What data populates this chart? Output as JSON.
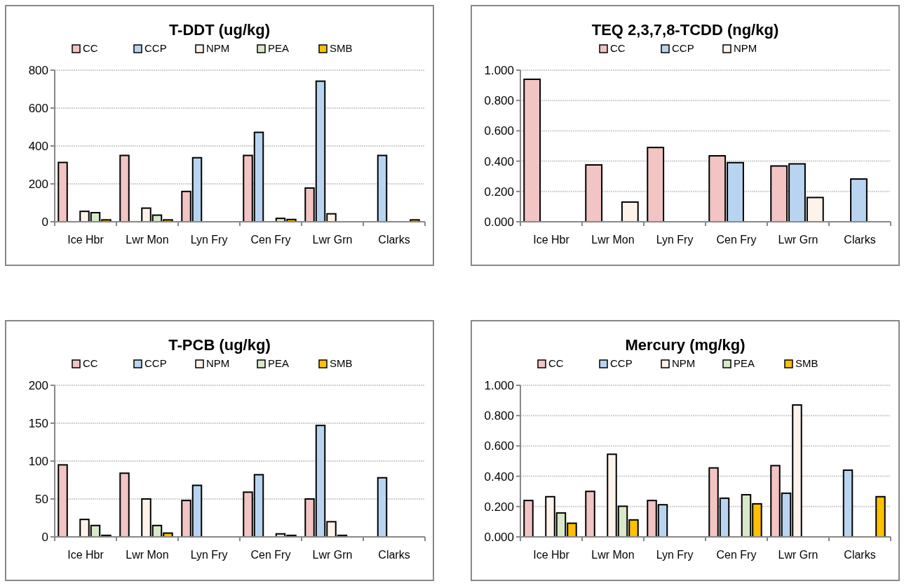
{
  "chart_data": [
    {
      "type": "bar",
      "title": "T-DDT  (ug/kg)",
      "categories": [
        "Ice Hbr",
        "Lwr Mon",
        "Lyn Fry",
        "Cen Fry",
        "Lwr Grn",
        "Clarks"
      ],
      "legend": "top",
      "grid": "y",
      "ylim": [
        0,
        800
      ],
      "yticks": [
        0,
        200,
        400,
        600,
        800
      ],
      "series": [
        {
          "name": "CC",
          "color": "#f2c4c4",
          "values": [
            313,
            350,
            160,
            350,
            178,
            null
          ]
        },
        {
          "name": "CCP",
          "color": "#b8d4f0",
          "values": [
            null,
            null,
            338,
            472,
            742,
            350
          ]
        },
        {
          "name": "NPM",
          "color": "#fdf3ea",
          "values": [
            55,
            72,
            null,
            null,
            42,
            null
          ]
        },
        {
          "name": "PEA",
          "color": "#d8e8c8",
          "values": [
            48,
            35,
            null,
            18,
            null,
            null
          ]
        },
        {
          "name": "SMB",
          "color": "#ffc000",
          "values": [
            10,
            10,
            null,
            12,
            null,
            10
          ]
        }
      ]
    },
    {
      "type": "bar",
      "title": "TEQ  2,3,7,8-TCDD  (ng/kg)",
      "categories": [
        "Ice Hbr",
        "Lwr Mon",
        "Lyn Fry",
        "Cen Fry",
        "Lwr Grn",
        "Clarks"
      ],
      "legend": "top",
      "grid": "y",
      "ylim": [
        0,
        1
      ],
      "yticks": [
        {
          "value": 0,
          "label": "0.000"
        },
        {
          "value": 0.2,
          "label": "0.200"
        },
        {
          "value": 0.4,
          "label": "0.400"
        },
        {
          "value": 0.6,
          "label": "0.600"
        },
        {
          "value": 0.8,
          "label": "0.800"
        },
        {
          "value": 1,
          "label": "1.000"
        }
      ],
      "series": [
        {
          "name": "CC",
          "color": "#f2c4c4",
          "values": [
            0.94,
            0.375,
            0.49,
            0.435,
            0.368,
            null
          ]
        },
        {
          "name": "CCP",
          "color": "#b8d4f0",
          "values": [
            null,
            null,
            null,
            0.39,
            0.382,
            0.282
          ]
        },
        {
          "name": "NPM",
          "color": "#fdf3ea",
          "values": [
            null,
            0.13,
            null,
            null,
            0.16,
            null
          ]
        }
      ]
    },
    {
      "type": "bar",
      "title": "T-PCB  (ug/kg)",
      "categories": [
        "Ice Hbr",
        "Lwr Mon",
        "Lyn Fry",
        "Cen Fry",
        "Lwr Grn",
        "Clarks"
      ],
      "legend": "top",
      "grid": "y",
      "ylim": [
        0,
        200
      ],
      "yticks": [
        0,
        50,
        100,
        150,
        200
      ],
      "series": [
        {
          "name": "CC",
          "color": "#f2c4c4",
          "values": [
            95,
            84,
            48,
            59,
            50,
            null
          ]
        },
        {
          "name": "CCP",
          "color": "#b8d4f0",
          "values": [
            null,
            null,
            68,
            82,
            147,
            78
          ]
        },
        {
          "name": "NPM",
          "color": "#fdf3ea",
          "values": [
            23,
            50,
            null,
            null,
            20,
            null
          ]
        },
        {
          "name": "PEA",
          "color": "#d8e8c8",
          "values": [
            15,
            15,
            null,
            4,
            2,
            null
          ]
        },
        {
          "name": "SMB",
          "color": "#ffc000",
          "values": [
            2,
            5,
            null,
            2,
            null,
            null
          ]
        }
      ]
    },
    {
      "type": "bar",
      "title": "Mercury (mg/kg)",
      "categories": [
        "Ice Hbr",
        "Lwr Mon",
        "Lyn Fry",
        "Cen Fry",
        "Lwr Grn",
        "Clarks"
      ],
      "legend": "top",
      "grid": "y",
      "ylim": [
        0,
        1
      ],
      "yticks": [
        {
          "value": 0,
          "label": "0.000"
        },
        {
          "value": 0.2,
          "label": "0.200"
        },
        {
          "value": 0.4,
          "label": "0.400"
        },
        {
          "value": 0.6,
          "label": "0.600"
        },
        {
          "value": 0.8,
          "label": "0.800"
        },
        {
          "value": 1,
          "label": "1.000"
        }
      ],
      "series": [
        {
          "name": "CC",
          "color": "#f2c4c4",
          "values": [
            0.24,
            0.3,
            0.24,
            0.455,
            0.47,
            null
          ]
        },
        {
          "name": "CCP",
          "color": "#b8d4f0",
          "values": [
            null,
            null,
            0.212,
            0.255,
            0.288,
            0.44
          ]
        },
        {
          "name": "NPM",
          "color": "#fdf3ea",
          "values": [
            0.265,
            0.545,
            null,
            null,
            0.87,
            null
          ]
        },
        {
          "name": "PEA",
          "color": "#d8e8c8",
          "values": [
            0.158,
            0.202,
            null,
            0.278,
            null,
            null
          ]
        },
        {
          "name": "SMB",
          "color": "#ffc000",
          "values": [
            0.09,
            0.112,
            null,
            0.218,
            null,
            0.265
          ]
        }
      ]
    }
  ]
}
